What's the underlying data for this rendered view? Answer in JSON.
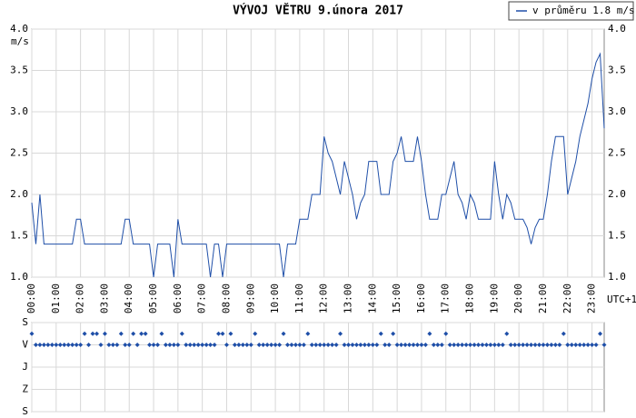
{
  "chart_data": [
    {
      "type": "line",
      "title": "VÝVOJ VĚTRU  9.února 2017",
      "y_label": "m/s",
      "x_label": "UTC+1",
      "x": [
        0,
        10,
        20,
        30,
        40,
        50,
        60,
        70,
        80,
        90,
        100,
        110,
        120,
        130,
        140,
        150,
        160,
        170,
        180,
        190,
        200,
        210,
        220,
        230,
        240,
        250,
        260,
        270,
        280,
        290,
        300,
        310,
        320,
        330,
        340,
        350,
        360,
        370,
        380,
        390,
        400,
        410,
        420,
        430,
        440,
        450,
        460,
        470,
        480,
        490,
        500,
        510,
        520,
        530,
        540,
        550,
        560,
        570,
        580,
        590,
        600,
        610,
        620,
        630,
        640,
        650,
        660,
        670,
        680,
        690,
        700,
        710,
        720,
        730,
        740,
        750,
        760,
        770,
        780,
        790,
        800,
        810,
        820,
        830,
        840,
        850,
        860,
        870,
        880,
        890,
        900,
        910,
        920,
        930,
        940,
        950,
        960,
        970,
        980,
        990,
        1000,
        1010,
        1020,
        1030,
        1040,
        1050,
        1060,
        1070,
        1080,
        1090,
        1100,
        1110,
        1120,
        1130,
        1140,
        1150,
        1160,
        1170,
        1180,
        1190,
        1200,
        1210,
        1220,
        1230,
        1240,
        1250,
        1260,
        1270,
        1280,
        1290,
        1300,
        1310,
        1320,
        1330,
        1340,
        1350,
        1360,
        1370,
        1380,
        1390,
        1400,
        1410
      ],
      "series": [
        {
          "name": "v průměru 1.8 m/s",
          "color": "#1f4fa8",
          "values": [
            1.9,
            1.4,
            2.0,
            1.4,
            1.4,
            1.4,
            1.4,
            1.4,
            1.4,
            1.4,
            1.4,
            1.7,
            1.7,
            1.4,
            1.4,
            1.4,
            1.4,
            1.4,
            1.4,
            1.4,
            1.4,
            1.4,
            1.4,
            1.7,
            1.7,
            1.4,
            1.4,
            1.4,
            1.4,
            1.4,
            1.0,
            1.4,
            1.4,
            1.4,
            1.4,
            1.0,
            1.7,
            1.4,
            1.4,
            1.4,
            1.4,
            1.4,
            1.4,
            1.4,
            1.0,
            1.4,
            1.4,
            1.0,
            1.4,
            1.4,
            1.4,
            1.4,
            1.4,
            1.4,
            1.4,
            1.4,
            1.4,
            1.4,
            1.4,
            1.4,
            1.4,
            1.4,
            1.0,
            1.4,
            1.4,
            1.4,
            1.7,
            1.7,
            1.7,
            2.0,
            2.0,
            2.0,
            2.7,
            2.5,
            2.4,
            2.2,
            2.0,
            2.4,
            2.2,
            2.0,
            1.7,
            1.9,
            2.0,
            2.4,
            2.4,
            2.4,
            2.0,
            2.0,
            2.0,
            2.4,
            2.5,
            2.7,
            2.4,
            2.4,
            2.4,
            2.7,
            2.4,
            2.0,
            1.7,
            1.7,
            1.7,
            2.0,
            2.0,
            2.2,
            2.4,
            2.0,
            1.9,
            1.7,
            2.0,
            1.9,
            1.7,
            1.7,
            1.7,
            1.7,
            2.4,
            2.0,
            1.7,
            2.0,
            1.9,
            1.7,
            1.7,
            1.7,
            1.6,
            1.4,
            1.6,
            1.7,
            1.7,
            2.0,
            2.4,
            2.7,
            2.7,
            2.7,
            2.0,
            2.2,
            2.4,
            2.7,
            2.9,
            3.1,
            3.4,
            3.6,
            3.7,
            2.8
          ]
        }
      ],
      "xlim": [
        0,
        1410
      ],
      "xticks": [
        {
          "value": 0,
          "label": "00:00"
        },
        {
          "value": 60,
          "label": "01:00"
        },
        {
          "value": 120,
          "label": "02:00"
        },
        {
          "value": 180,
          "label": "03:00"
        },
        {
          "value": 240,
          "label": "04:00"
        },
        {
          "value": 300,
          "label": "05:00"
        },
        {
          "value": 360,
          "label": "06:00"
        },
        {
          "value": 420,
          "label": "07:00"
        },
        {
          "value": 480,
          "label": "08:00"
        },
        {
          "value": 540,
          "label": "09:00"
        },
        {
          "value": 600,
          "label": "10:00"
        },
        {
          "value": 660,
          "label": "11:00"
        },
        {
          "value": 720,
          "label": "12:00"
        },
        {
          "value": 780,
          "label": "13:00"
        },
        {
          "value": 840,
          "label": "14:00"
        },
        {
          "value": 900,
          "label": "15:00"
        },
        {
          "value": 960,
          "label": "16:00"
        },
        {
          "value": 1020,
          "label": "17:00"
        },
        {
          "value": 1080,
          "label": "18:00"
        },
        {
          "value": 1140,
          "label": "19:00"
        },
        {
          "value": 1200,
          "label": "20:00"
        },
        {
          "value": 1260,
          "label": "21:00"
        },
        {
          "value": 1320,
          "label": "22:00"
        },
        {
          "value": 1380,
          "label": "23:00"
        }
      ],
      "ylim": [
        1.0,
        4.0
      ],
      "yticks": [
        {
          "value": 1.0,
          "label": "1.0"
        },
        1.5,
        {
          "value": 2.0,
          "label": "2.0"
        },
        2.5,
        {
          "value": 3.0,
          "label": "3.0"
        },
        3.5,
        {
          "value": 4.0,
          "label": "4.0"
        }
      ],
      "grid": true,
      "legend": "top-right"
    },
    {
      "type": "scatter",
      "color": "#1f4fa8",
      "x": [
        0,
        10,
        20,
        30,
        40,
        50,
        60,
        70,
        80,
        90,
        100,
        110,
        120,
        130,
        140,
        150,
        160,
        170,
        180,
        190,
        200,
        210,
        220,
        230,
        240,
        250,
        260,
        270,
        280,
        290,
        300,
        310,
        320,
        330,
        340,
        350,
        360,
        370,
        380,
        390,
        400,
        410,
        420,
        430,
        440,
        450,
        460,
        470,
        480,
        490,
        500,
        510,
        520,
        530,
        540,
        550,
        560,
        570,
        580,
        590,
        600,
        610,
        620,
        630,
        640,
        650,
        660,
        670,
        680,
        690,
        700,
        710,
        720,
        730,
        740,
        750,
        760,
        770,
        780,
        790,
        800,
        810,
        820,
        830,
        840,
        850,
        860,
        870,
        880,
        890,
        900,
        910,
        920,
        930,
        940,
        950,
        960,
        970,
        980,
        990,
        1000,
        1010,
        1020,
        1030,
        1040,
        1050,
        1060,
        1070,
        1080,
        1090,
        1100,
        1110,
        1120,
        1130,
        1140,
        1150,
        1160,
        1170,
        1180,
        1190,
        1200,
        1210,
        1220,
        1230,
        1240,
        1250,
        1260,
        1270,
        1280,
        1290,
        1300,
        1310,
        1320,
        1330,
        1340,
        1350,
        1360,
        1370,
        1380,
        1390,
        1400,
        1410
      ],
      "values": [
        45,
        90,
        90,
        90,
        90,
        90,
        90,
        90,
        90,
        90,
        90,
        90,
        90,
        45,
        90,
        45,
        45,
        90,
        45,
        90,
        90,
        90,
        45,
        90,
        90,
        45,
        90,
        45,
        45,
        90,
        90,
        90,
        45,
        90,
        90,
        90,
        90,
        45,
        90,
        90,
        90,
        90,
        90,
        90,
        90,
        90,
        45,
        45,
        90,
        45,
        90,
        90,
        90,
        90,
        90,
        45,
        90,
        90,
        90,
        90,
        90,
        90,
        45,
        90,
        90,
        90,
        90,
        90,
        45,
        90,
        90,
        90,
        90,
        90,
        90,
        90,
        45,
        90,
        90,
        90,
        90,
        90,
        90,
        90,
        90,
        90,
        45,
        90,
        90,
        45,
        90,
        90,
        90,
        90,
        90,
        90,
        90,
        90,
        45,
        90,
        90,
        90,
        45,
        90,
        90,
        90,
        90,
        90,
        90,
        90,
        90,
        90,
        90,
        90,
        90,
        90,
        90,
        45,
        90,
        90,
        90,
        90,
        90,
        90,
        90,
        90,
        90,
        90,
        90,
        90,
        90,
        45,
        90,
        90,
        90,
        90,
        90,
        90,
        90,
        90,
        45,
        90
      ],
      "xlim": [
        0,
        1410
      ],
      "ylim": [
        0,
        360
      ],
      "yticks": [
        {
          "value": 0,
          "label": "S"
        },
        {
          "value": 90,
          "label": "V"
        },
        {
          "value": 180,
          "label": "J"
        },
        {
          "value": 270,
          "label": "Z"
        },
        {
          "value": 360,
          "label": "S"
        }
      ],
      "grid": true
    }
  ]
}
